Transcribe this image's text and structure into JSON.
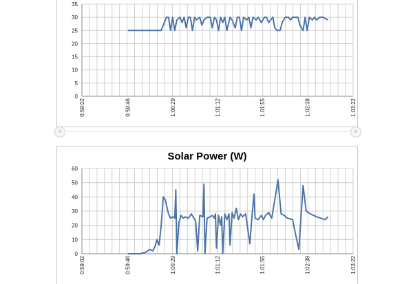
{
  "ui": {
    "prev_arrow": "‹",
    "next_arrow": "›",
    "prev_icon": "chevron-left-icon",
    "next_icon": "chevron-right-icon"
  },
  "chart_data": [
    {
      "type": "line",
      "title": "",
      "xlabel": "",
      "ylabel": "",
      "color": "#4a74a8",
      "ylim": [
        0,
        35
      ],
      "yticks": [
        0,
        5,
        10,
        15,
        20,
        25,
        30,
        35
      ],
      "xlim": [
        "0:59:02",
        "1:03:22"
      ],
      "xticks": [
        "0:59:02",
        "0:59:46",
        "1:00:29",
        "1:01:12",
        "1:01:55",
        "1:02:38",
        "1:03:22"
      ],
      "grid": true,
      "series": [
        {
          "values": [
            {
              "x": "0:59:46",
              "y": 25
            },
            {
              "x": "1:00:18",
              "y": 25
            },
            {
              "x": "1:00:21",
              "y": 28
            },
            {
              "x": "1:00:23",
              "y": 30
            },
            {
              "x": "1:00:25",
              "y": 30
            },
            {
              "x": "1:00:27",
              "y": 25
            },
            {
              "x": "1:00:29",
              "y": 30
            },
            {
              "x": "1:00:31",
              "y": 25
            },
            {
              "x": "1:00:33",
              "y": 29
            },
            {
              "x": "1:00:36",
              "y": 30
            },
            {
              "x": "1:00:38",
              "y": 28
            },
            {
              "x": "1:00:40",
              "y": 30
            },
            {
              "x": "1:00:42",
              "y": 26
            },
            {
              "x": "1:00:44",
              "y": 30
            },
            {
              "x": "1:00:46",
              "y": 30
            },
            {
              "x": "1:00:48",
              "y": 25
            },
            {
              "x": "1:00:50",
              "y": 30
            },
            {
              "x": "1:00:52",
              "y": 29
            },
            {
              "x": "1:00:55",
              "y": 30
            },
            {
              "x": "1:00:57",
              "y": 27
            },
            {
              "x": "1:00:59",
              "y": 29
            },
            {
              "x": "1:01:02",
              "y": 30
            },
            {
              "x": "1:01:05",
              "y": 30
            },
            {
              "x": "1:01:07",
              "y": 26
            },
            {
              "x": "1:01:09",
              "y": 30
            },
            {
              "x": "1:01:11",
              "y": 29
            },
            {
              "x": "1:01:13",
              "y": 25
            },
            {
              "x": "1:01:15",
              "y": 30
            },
            {
              "x": "1:01:17",
              "y": 28
            },
            {
              "x": "1:01:19",
              "y": 30
            },
            {
              "x": "1:01:21",
              "y": 25
            },
            {
              "x": "1:01:24",
              "y": 30
            },
            {
              "x": "1:01:26",
              "y": 29
            },
            {
              "x": "1:01:29",
              "y": 26
            },
            {
              "x": "1:01:31",
              "y": 30
            },
            {
              "x": "1:01:33",
              "y": 30
            },
            {
              "x": "1:01:35",
              "y": 25
            },
            {
              "x": "1:01:37",
              "y": 30
            },
            {
              "x": "1:01:40",
              "y": 29
            },
            {
              "x": "1:01:42",
              "y": 30
            },
            {
              "x": "1:01:44",
              "y": 26
            },
            {
              "x": "1:01:46",
              "y": 30
            },
            {
              "x": "1:01:49",
              "y": 29
            },
            {
              "x": "1:01:51",
              "y": 30
            },
            {
              "x": "1:01:54",
              "y": 28
            },
            {
              "x": "1:01:57",
              "y": 30
            },
            {
              "x": "1:01:59",
              "y": 30
            },
            {
              "x": "1:02:01",
              "y": 28
            },
            {
              "x": "1:02:05",
              "y": 30
            },
            {
              "x": "1:02:07",
              "y": 26
            },
            {
              "x": "1:02:09",
              "y": 25
            },
            {
              "x": "1:02:12",
              "y": 25
            },
            {
              "x": "1:02:14",
              "y": 28
            },
            {
              "x": "1:02:17",
              "y": 30
            },
            {
              "x": "1:02:20",
              "y": 30
            },
            {
              "x": "1:02:22",
              "y": 29
            },
            {
              "x": "1:02:24",
              "y": 30
            },
            {
              "x": "1:02:27",
              "y": 30
            },
            {
              "x": "1:02:29",
              "y": 30
            },
            {
              "x": "1:02:31",
              "y": 27
            },
            {
              "x": "1:02:34",
              "y": 25
            },
            {
              "x": "1:02:36",
              "y": 30
            },
            {
              "x": "1:02:38",
              "y": 25
            },
            {
              "x": "1:02:40",
              "y": 30
            },
            {
              "x": "1:02:43",
              "y": 29
            },
            {
              "x": "1:02:45",
              "y": 30
            },
            {
              "x": "1:02:47",
              "y": 29
            },
            {
              "x": "1:02:50",
              "y": 30
            },
            {
              "x": "1:02:53",
              "y": 30
            },
            {
              "x": "1:02:58",
              "y": 29
            }
          ]
        }
      ]
    },
    {
      "type": "line",
      "title": "Solar Power (W)",
      "xlabel": "",
      "ylabel": "",
      "color": "#4a74a8",
      "ylim": [
        0,
        60
      ],
      "yticks": [
        0,
        10,
        20,
        30,
        40,
        50,
        60
      ],
      "xlim": [
        "0:59:02",
        "1:03:22"
      ],
      "xticks": [
        "0:59:02",
        "0:59:46",
        "1:00:29",
        "1:01:12",
        "1:01:55",
        "1:02:38",
        "1:03:22"
      ],
      "grid": true,
      "series": [
        {
          "values": [
            {
              "x": "0:59:46",
              "y": 0
            },
            {
              "x": "0:59:58",
              "y": 0
            },
            {
              "x": "1:00:03",
              "y": 1
            },
            {
              "x": "1:00:07",
              "y": 3
            },
            {
              "x": "1:00:10",
              "y": 2
            },
            {
              "x": "1:00:12",
              "y": 5
            },
            {
              "x": "1:00:14",
              "y": 10
            },
            {
              "x": "1:00:16",
              "y": 6
            },
            {
              "x": "1:00:18",
              "y": 20
            },
            {
              "x": "1:00:20",
              "y": 40
            },
            {
              "x": "1:00:22",
              "y": 38
            },
            {
              "x": "1:00:25",
              "y": 28
            },
            {
              "x": "1:00:27",
              "y": 25
            },
            {
              "x": "1:00:29",
              "y": 26
            },
            {
              "x": "1:00:31",
              "y": 25
            },
            {
              "x": "1:00:32",
              "y": 45
            },
            {
              "x": "1:00:33",
              "y": 0
            },
            {
              "x": "1:00:35",
              "y": 22
            },
            {
              "x": "1:00:37",
              "y": 27
            },
            {
              "x": "1:00:39",
              "y": 25
            },
            {
              "x": "1:00:41",
              "y": 26
            },
            {
              "x": "1:00:44",
              "y": 25
            },
            {
              "x": "1:00:47",
              "y": 28
            },
            {
              "x": "1:00:51",
              "y": 23
            },
            {
              "x": "1:00:53",
              "y": 2
            },
            {
              "x": "1:00:55",
              "y": 27
            },
            {
              "x": "1:00:58",
              "y": 26
            },
            {
              "x": "1:00:59",
              "y": 49
            },
            {
              "x": "1:01:00",
              "y": 0
            },
            {
              "x": "1:01:02",
              "y": 25
            },
            {
              "x": "1:01:05",
              "y": 26
            },
            {
              "x": "1:01:07",
              "y": 27
            },
            {
              "x": "1:01:09",
              "y": 25
            },
            {
              "x": "1:01:10",
              "y": 28
            },
            {
              "x": "1:01:11",
              "y": 4
            },
            {
              "x": "1:01:13",
              "y": 27
            },
            {
              "x": "1:01:15",
              "y": 20
            },
            {
              "x": "1:01:16",
              "y": 26
            },
            {
              "x": "1:01:17",
              "y": 0
            },
            {
              "x": "1:01:19",
              "y": 28
            },
            {
              "x": "1:01:21",
              "y": 24
            },
            {
              "x": "1:01:23",
              "y": 28
            },
            {
              "x": "1:01:24",
              "y": 6
            },
            {
              "x": "1:01:26",
              "y": 29
            },
            {
              "x": "1:01:28",
              "y": 25
            },
            {
              "x": "1:01:30",
              "y": 32
            },
            {
              "x": "1:01:32",
              "y": 24
            },
            {
              "x": "1:01:34",
              "y": 28
            },
            {
              "x": "1:01:36",
              "y": 26
            },
            {
              "x": "1:01:39",
              "y": 28
            },
            {
              "x": "1:01:43",
              "y": 7
            },
            {
              "x": "1:01:45",
              "y": 26
            },
            {
              "x": "1:01:47",
              "y": 42
            },
            {
              "x": "1:01:48",
              "y": 25
            },
            {
              "x": "1:01:51",
              "y": 24
            },
            {
              "x": "1:01:54",
              "y": 27
            },
            {
              "x": "1:01:56",
              "y": 24
            },
            {
              "x": "1:01:58",
              "y": 27
            },
            {
              "x": "1:02:01",
              "y": 29
            },
            {
              "x": "1:02:04",
              "y": 25
            },
            {
              "x": "1:02:08",
              "y": 43
            },
            {
              "x": "1:02:10",
              "y": 52
            },
            {
              "x": "1:02:13",
              "y": 28
            },
            {
              "x": "1:02:16",
              "y": 27
            },
            {
              "x": "1:02:19",
              "y": 25
            },
            {
              "x": "1:02:24",
              "y": 24
            },
            {
              "x": "1:02:27",
              "y": 13
            },
            {
              "x": "1:02:30",
              "y": 3
            },
            {
              "x": "1:02:34",
              "y": 48
            },
            {
              "x": "1:02:37",
              "y": 30
            },
            {
              "x": "1:02:41",
              "y": 28
            },
            {
              "x": "1:02:47",
              "y": 26
            },
            {
              "x": "1:02:51",
              "y": 25
            },
            {
              "x": "1:02:55",
              "y": 24
            },
            {
              "x": "1:02:58",
              "y": 26
            }
          ]
        }
      ]
    }
  ]
}
